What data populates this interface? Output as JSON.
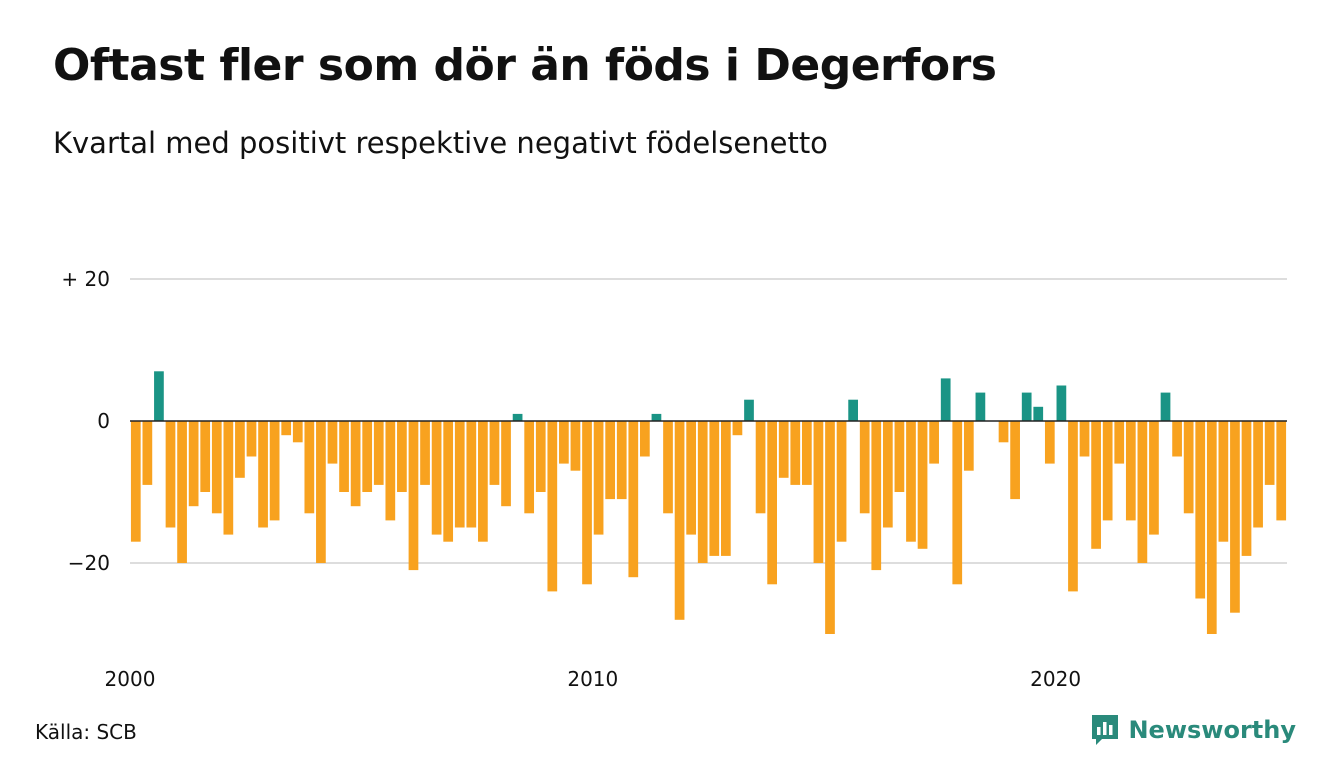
{
  "header": {
    "title": "Oftast fler som dör än föds i Degerfors",
    "subtitle": "Kvartal med positivt respektive negativt födelsenetto"
  },
  "footer": {
    "source": "Källa: SCB",
    "brand": "Newsworthy"
  },
  "colors": {
    "positive": "#1a9485",
    "negative": "#f8a21f",
    "grid": "#dddddd",
    "zero_line": "#222222",
    "brand": "#2a8a7b"
  },
  "chart_data": {
    "type": "bar",
    "x_unit": "quarter",
    "x_start": "2000",
    "ylim": [
      -32,
      21
    ],
    "y_ticks": [
      {
        "value": 20,
        "label": "+ 20"
      },
      {
        "value": 0,
        "label": "0"
      },
      {
        "value": -20,
        "label": "−20"
      }
    ],
    "x_ticks": [
      {
        "value": 2000,
        "label": "2000"
      },
      {
        "value": 2010,
        "label": "2010"
      },
      {
        "value": 2020,
        "label": "2020"
      }
    ],
    "grid": true,
    "values": [
      -17,
      -9,
      7,
      -15,
      -20,
      -12,
      -10,
      -13,
      -16,
      -8,
      -5,
      -15,
      -14,
      -2,
      -3,
      -13,
      -20,
      -6,
      -10,
      -12,
      -10,
      -9,
      -14,
      -10,
      -21,
      -9,
      -16,
      -17,
      -15,
      -15,
      -17,
      -9,
      -12,
      1,
      -13,
      -10,
      -24,
      -6,
      -7,
      -23,
      -16,
      -11,
      -11,
      -22,
      -5,
      1,
      -13,
      -28,
      -16,
      -20,
      -19,
      -19,
      -2,
      3,
      -13,
      -23,
      -8,
      -9,
      -9,
      -20,
      -30,
      -17,
      3,
      -13,
      -21,
      -15,
      -10,
      -17,
      -18,
      -6,
      6,
      -23,
      -7,
      4,
      0,
      -3,
      -11,
      4,
      2,
      -6,
      5,
      -24,
      -5,
      -18,
      -14,
      -6,
      -14,
      -20,
      -16,
      4,
      -5,
      -13,
      -25,
      -30,
      -17,
      -27,
      -19,
      -15,
      -9,
      -14
    ]
  }
}
